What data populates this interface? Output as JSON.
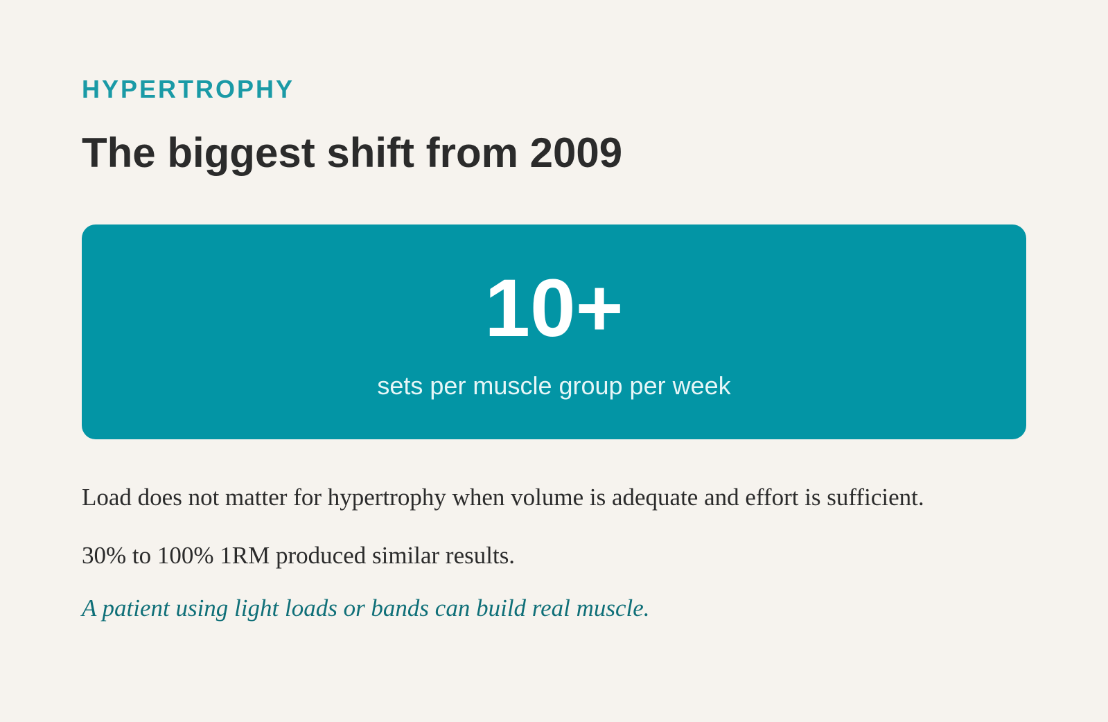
{
  "eyebrow": "HYPERTROPHY",
  "title": "The biggest shift from 2009",
  "stat": {
    "value": "10+",
    "caption": "sets per muscle group per week"
  },
  "paragraphs": [
    "Load does not matter for hypertrophy when volume is adequate and effort is sufficient.",
    "30% to 100% 1RM produced similar results."
  ],
  "note": "A patient using light loads or bands can build real muscle."
}
